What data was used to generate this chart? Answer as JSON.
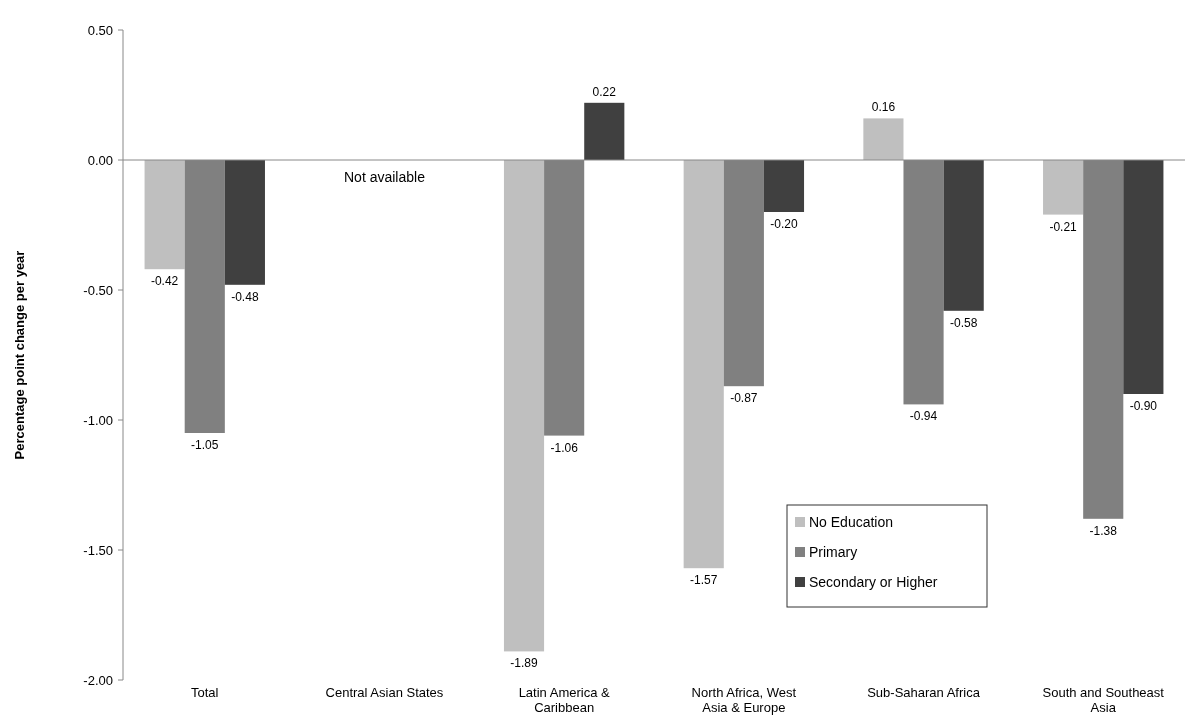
{
  "chart_data": {
    "type": "bar",
    "ylabel": "Percentage point change per year",
    "categories": [
      "Total",
      "Central Asian States",
      "Latin America & Caribbean",
      "North Africa, West Asia & Europe",
      "Sub-Saharan Africa",
      "South and Southeast Asia"
    ],
    "series": [
      {
        "name": "No Education",
        "color": "#bfbfbf",
        "values": [
          -0.42,
          null,
          -1.89,
          -1.57,
          0.16,
          -0.21
        ],
        "value_labels": [
          "-0.42",
          null,
          "-1.89",
          "-1.57",
          "0.16",
          "-0.21"
        ]
      },
      {
        "name": "Primary",
        "color": "#808080",
        "values": [
          -1.05,
          null,
          -1.06,
          -0.87,
          -0.94,
          -1.38
        ],
        "value_labels": [
          "-1.05",
          null,
          "-1.06",
          "-0.87",
          "-0.94",
          "-1.38"
        ]
      },
      {
        "name": "Secondary or Higher",
        "color": "#404040",
        "values": [
          -0.48,
          null,
          0.22,
          -0.2,
          -0.58,
          -0.9
        ],
        "value_labels": [
          "-0.48",
          null,
          "0.22",
          "-0.20",
          "-0.58",
          "-0.90"
        ]
      }
    ],
    "annotations": [
      "Not available"
    ],
    "ylim": [
      -2,
      0.5
    ],
    "yticks": [
      {
        "value": -2,
        "label": "-2.00"
      },
      {
        "value": -1.5,
        "label": "-1.50"
      },
      {
        "value": -1,
        "label": "-1.00"
      },
      {
        "value": -0.5,
        "label": "-0.50"
      },
      {
        "value": 0,
        "label": "0.00"
      },
      {
        "value": 0.5,
        "label": "0.50"
      }
    ],
    "legend": "bottom right"
  }
}
